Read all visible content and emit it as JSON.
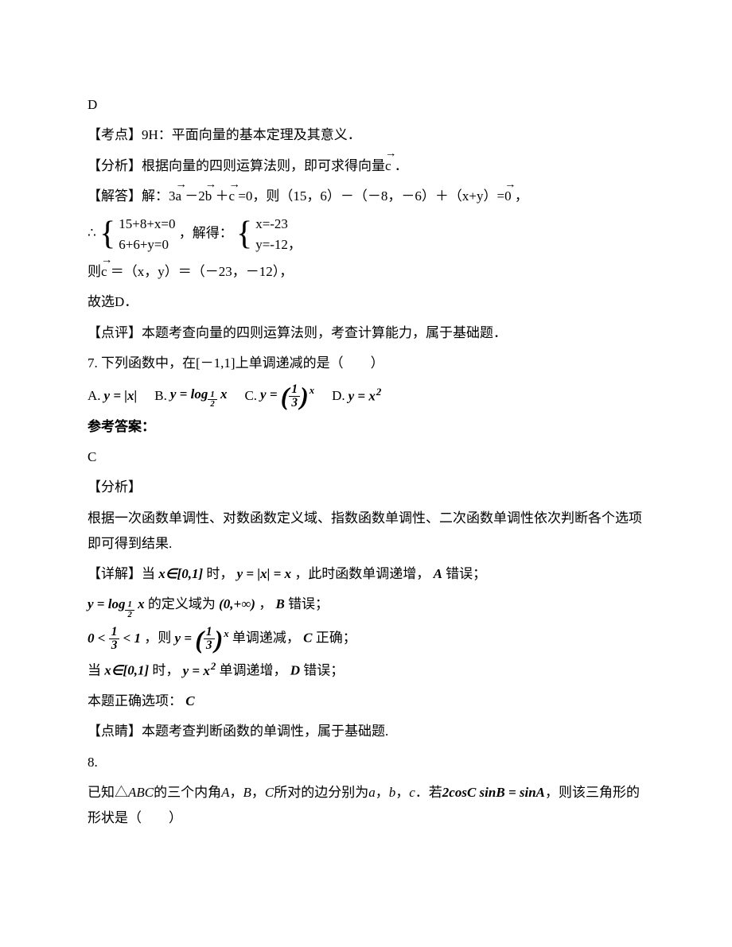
{
  "colors": {
    "text": "#000000",
    "background": "#ffffff"
  },
  "typography": {
    "body_font": "SimSun / 宋体",
    "body_size_pt": 13,
    "line_height": 1.9
  },
  "q6_solution": {
    "answer": "D",
    "topic_label": "【考点】9H：平面向量的基本定理及其意义．",
    "analysis_label": "【分析】根据向量的四则运算法则，即可求得向量",
    "analysis_vec": "c",
    "analysis_end": " ．",
    "solve_label": "【解答】解：3",
    "vec_a": "a",
    "solve_mid1": " －2",
    "vec_b": "b",
    "solve_mid2": " ＋",
    "vec_c": "c",
    "solve_mid3": " =0，则（15，6）－（－8，－6）＋（x+y）=",
    "vec_0": "0",
    "solve_end": " ，",
    "therefore": "∴",
    "eqs_line1": "15+8+x=0",
    "eqs_line2": "6+6+y=0",
    "eqs_sep": "，解得：",
    "sol_line1": "x=-23",
    "sol_line2": "y=-12，",
    "then_label": "则",
    "then_vec": "c",
    "then_rest": " ＝（x，y）＝（－23，－12），",
    "pick": "故选D．",
    "comment": "【点评】本题考查向量的四则运算法则，考查计算能力，属于基础题．"
  },
  "q7": {
    "stem_pre": "7. 下列函数中，在[－1,1]上单调递减的是（　　）",
    "options": {
      "A": {
        "label": "A.",
        "expr_html": "y = |x|"
      },
      "B": {
        "label": "B.",
        "expr_html": "y = log_{1/2} x"
      },
      "C": {
        "label": "C.",
        "expr_html": "y = (1/3)^x"
      },
      "D": {
        "label": "D.",
        "expr_html": "y = x^2"
      }
    },
    "ref_label": "参考答案：",
    "answer": "C",
    "analysis_label": "【分析】",
    "analysis_text": "根据一次函数单调性、对数函数定义域、指数函数单调性、二次函数单调性依次判断各个选项即可得到结果.",
    "detail_label": "【详解】当",
    "detail_x_in": "x∈[0,1]",
    "detail_mid1": "时，",
    "detail_eq1": "y = |x| = x",
    "detail_tail1": "，此时函数单调递增，",
    "detail_A_wrong": "A",
    "detail_wrong_text": "错误；",
    "detail_log": "y = log_{1/2} x",
    "detail_domain_pre": "的定义域为",
    "detail_domain": "(0,+∞)",
    "detail_B_wrong": "B",
    "detail_frac_cond": "0 < 1/3 < 1",
    "detail_then": "，则",
    "detail_exp": "y = (1/3)^x",
    "detail_dec": "单调递减，",
    "detail_C_ok": "C",
    "detail_ok_text": "正确；",
    "detail_when2": "当",
    "detail_x_in2": "x∈[0,1]",
    "detail_mid2": "时，",
    "detail_sq": "y = x^2",
    "detail_inc": "单调递增，",
    "detail_D_wrong": "D",
    "detail_final_pre": "本题正确选项：",
    "detail_final": "C",
    "comment": "【点睛】本题考查判断函数的单调性，属于基础题."
  },
  "q8": {
    "num": "8.",
    "stem_pre": "已知△",
    "abc": "ABC",
    "stem_mid1": "的三个内角",
    "A": "A",
    "comma1": "，",
    "B": "B",
    "comma2": "，",
    "C": "C",
    "stem_mid2": "所对的边分别为",
    "a": "a",
    "b": "b",
    "c": "c",
    "stem_mid3": "．若",
    "eq": "2cosC sinB = sinA",
    "stem_tail": "，则该三角形的形状是（　　）"
  }
}
